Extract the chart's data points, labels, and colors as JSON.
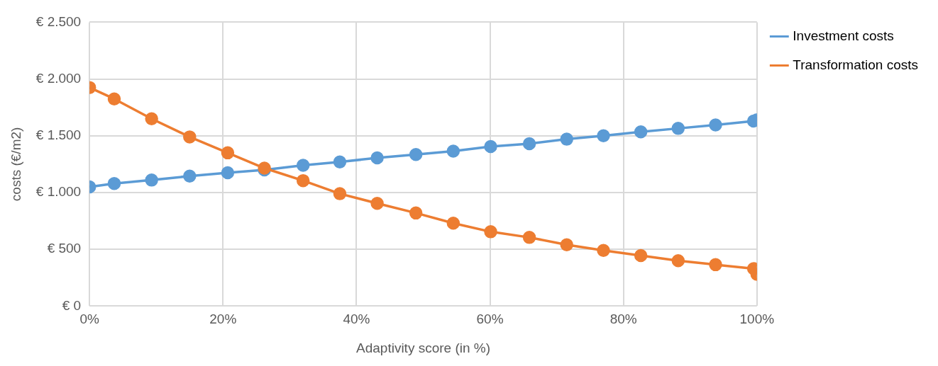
{
  "chart_data": {
    "type": "line",
    "xlabel": "Adaptivity score (in %)",
    "ylabel": "costs (€/m2)",
    "x": [
      0,
      3.7,
      9.3,
      15,
      20.7,
      26.2,
      32,
      37.5,
      43.1,
      48.9,
      54.5,
      60.1,
      65.9,
      71.5,
      77,
      82.6,
      88.2,
      93.8,
      99.5,
      100
    ],
    "series": [
      {
        "name": "Investment costs",
        "color": "#5b9bd5",
        "values": [
          1050,
          1080,
          1110,
          1145,
          1175,
          1200,
          1240,
          1270,
          1305,
          1335,
          1365,
          1405,
          1430,
          1470,
          1500,
          1535,
          1565,
          1595,
          1630,
          1640
        ]
      },
      {
        "name": "Transformation costs",
        "color": "#ed7d31",
        "values": [
          1925,
          1825,
          1650,
          1490,
          1350,
          1215,
          1105,
          990,
          905,
          820,
          730,
          655,
          605,
          540,
          490,
          445,
          400,
          365,
          330,
          280
        ]
      }
    ],
    "xlim": [
      0,
      100
    ],
    "xticks": [
      {
        "value": 0,
        "label": "0%"
      },
      {
        "value": 20,
        "label": "20%"
      },
      {
        "value": 40,
        "label": "40%"
      },
      {
        "value": 60,
        "label": "60%"
      },
      {
        "value": 80,
        "label": "80%"
      },
      {
        "value": 100,
        "label": "100%"
      }
    ],
    "ylim": [
      0,
      2500
    ],
    "yticks": [
      {
        "value": 0,
        "label": "€ 0"
      },
      {
        "value": 500,
        "label": "€ 500"
      },
      {
        "value": 1000,
        "label": "€ 1.000"
      },
      {
        "value": 1500,
        "label": "€ 1.500"
      },
      {
        "value": 2000,
        "label": "€ 2.000"
      },
      {
        "value": 2500,
        "label": "€ 2.500"
      }
    ],
    "grid": true,
    "legend": "right",
    "marker": "circle",
    "line_style": "solid"
  }
}
